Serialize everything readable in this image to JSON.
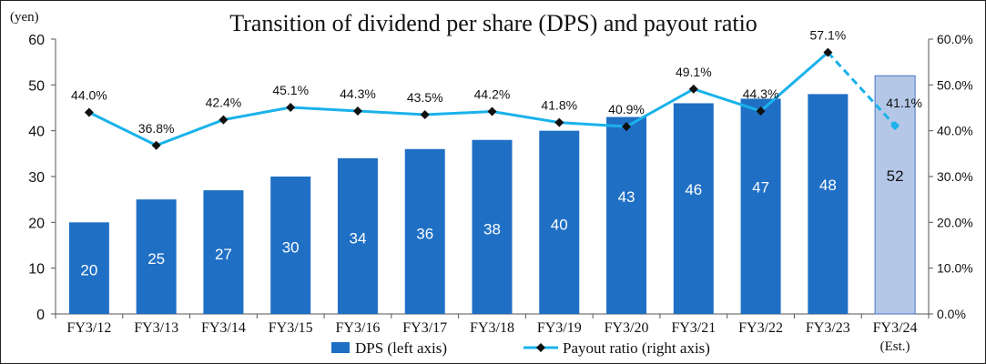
{
  "chart_data": {
    "type": "bar",
    "title": "Transition of dividend per share (DPS) and payout ratio",
    "left_axis_unit": "(yen)",
    "categories": [
      "FY3/12",
      "FY3/13",
      "FY3/14",
      "FY3/15",
      "FY3/16",
      "FY3/17",
      "FY3/18",
      "FY3/19",
      "FY3/20",
      "FY3/21",
      "FY3/22",
      "FY3/23",
      "FY3/24"
    ],
    "category_notes": [
      "",
      "",
      "",
      "",
      "",
      "",
      "",
      "",
      "",
      "",
      "",
      "",
      "(Est.)"
    ],
    "series": [
      {
        "name": "DPS (left axis)",
        "type": "bar",
        "axis": "left",
        "values": [
          20,
          25,
          27,
          30,
          34,
          36,
          38,
          40,
          43,
          46,
          47,
          48,
          52
        ],
        "value_labels": [
          "20",
          "25",
          "27",
          "30",
          "34",
          "36",
          "38",
          "40",
          "43",
          "46",
          "47",
          "48",
          "52"
        ],
        "estimate_from_index": 12
      },
      {
        "name": "Payout ratio (right axis)",
        "type": "line",
        "axis": "right",
        "values": [
          44.0,
          36.8,
          42.4,
          45.1,
          44.3,
          43.5,
          44.2,
          41.8,
          40.9,
          49.1,
          44.3,
          57.1,
          41.1
        ],
        "value_labels": [
          "44.0%",
          "36.8%",
          "42.4%",
          "45.1%",
          "44.3%",
          "43.5%",
          "44.2%",
          "41.8%",
          "40.9%",
          "49.1%",
          "44.3%",
          "57.1%",
          "41.1%"
        ],
        "estimate_from_index": 12
      }
    ],
    "left_axis": {
      "min": 0,
      "max": 60,
      "ticks": [
        "0",
        "10",
        "20",
        "30",
        "40",
        "50",
        "60"
      ]
    },
    "right_axis": {
      "min": 0,
      "max": 60,
      "ticks": [
        "0.0%",
        "10.0%",
        "20.0%",
        "30.0%",
        "40.0%",
        "50.0%",
        "60.0%"
      ]
    },
    "grid": false,
    "legend_position": "bottom",
    "colors": {
      "bar": "#1f6fc5",
      "bar_estimate": "#b4c7e7",
      "bar_estimate_border": "#4a72c4",
      "line": "#1ab2ea",
      "marker": "#111111",
      "axis": "#555555",
      "bar_label": "#ffffff",
      "bar_label_estimate": "#111111"
    }
  }
}
